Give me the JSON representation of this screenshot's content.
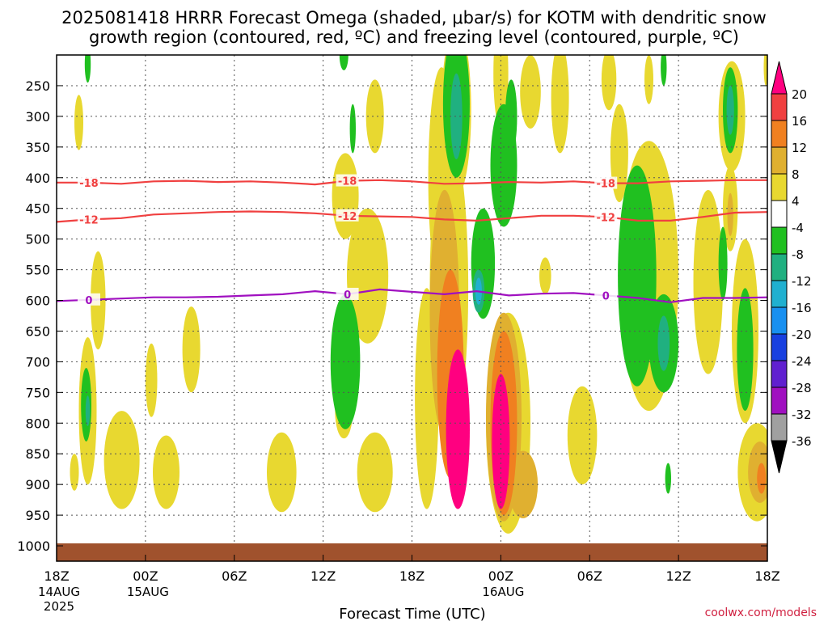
{
  "chart_data": {
    "type": "heatmap",
    "title_line1": "2025081418 HRRR Forecast Omega (shaded, μbar/s) for KOTM with dendritic snow",
    "title_line2": "growth region (contoured, red, ºC) and freezing level (contoured, purple, ºC)",
    "xlabel": "Forecast Time (UTC)",
    "credit": "coolwx.com/models",
    "x_ticks": [
      {
        "hour": 0,
        "label": "18Z",
        "date1": "14AUG",
        "date2": "2025"
      },
      {
        "hour": 6,
        "label": "00Z",
        "date1": "15AUG",
        "date2": ""
      },
      {
        "hour": 12,
        "label": "06Z",
        "date1": "",
        "date2": ""
      },
      {
        "hour": 18,
        "label": "12Z",
        "date1": "",
        "date2": ""
      },
      {
        "hour": 24,
        "label": "18Z",
        "date1": "",
        "date2": ""
      },
      {
        "hour": 30,
        "label": "00Z",
        "date1": "16AUG",
        "date2": ""
      },
      {
        "hour": 36,
        "label": "06Z",
        "date1": "",
        "date2": ""
      },
      {
        "hour": 42,
        "label": "12Z",
        "date1": "",
        "date2": ""
      },
      {
        "hour": 48,
        "label": "18Z",
        "date1": "",
        "date2": ""
      }
    ],
    "y_ticks": [
      "250",
      "300",
      "350",
      "400",
      "450",
      "500",
      "550",
      "600",
      "650",
      "700",
      "750",
      "800",
      "850",
      "900",
      "950",
      "1000"
    ],
    "y_range_hpa": [
      200,
      1025
    ],
    "x_range_hours": [
      0,
      48
    ],
    "colorbar": {
      "labels": [
        "20",
        "16",
        "12",
        "8",
        "4",
        "-4",
        "-8",
        "-12",
        "-16",
        "-20",
        "-24",
        "-28",
        "-32",
        "-36"
      ],
      "colors": [
        "#ff0080",
        "#f04040",
        "#f08020",
        "#e0b030",
        "#e8d830",
        "#ffffff",
        "#20c020",
        "#20b080",
        "#20b0d0",
        "#1890f0",
        "#1840e0",
        "#6020d0",
        "#a010c0",
        "#a0a0a0",
        "#000000"
      ]
    },
    "contours": {
      "dgz_red": [
        {
          "label": "-18",
          "color": "#f04040",
          "pressure": [
            408,
            408,
            410,
            406,
            405,
            407,
            406,
            408,
            411,
            405,
            404,
            406,
            410,
            409,
            407,
            408,
            406,
            409,
            409,
            406,
            405,
            404,
            404
          ]
        },
        {
          "label": "-12",
          "color": "#f04040",
          "pressure": [
            472,
            468,
            466,
            460,
            458,
            456,
            455,
            456,
            458,
            462,
            463,
            464,
            468,
            470,
            466,
            462,
            462,
            464,
            470,
            470,
            464,
            457,
            456
          ]
        }
      ],
      "freezing_purple": [
        {
          "label": "0",
          "color": "#a010c0",
          "pressure": [
            601,
            599,
            597,
            595,
            595,
            594,
            592,
            590,
            585,
            590,
            582,
            586,
            590,
            585,
            592,
            589,
            588,
            592,
            596,
            603,
            596,
            596,
            595
          ]
        }
      ]
    },
    "omega_regions": [
      {
        "x": 1.5,
        "p": 310,
        "rx": 0.3,
        "rp": 45,
        "v": 5
      },
      {
        "x": 2.1,
        "p": 780,
        "rx": 0.6,
        "rp": 120,
        "v": 5
      },
      {
        "x": 2.0,
        "p": 770,
        "rx": 0.35,
        "rp": 60,
        "v": -8
      },
      {
        "x": 2.1,
        "p": 780,
        "rx": 0.15,
        "rp": 25,
        "v": -13
      },
      {
        "x": 2.1,
        "p": 215,
        "rx": 0.2,
        "rp": 30,
        "v": -8
      },
      {
        "x": 1.2,
        "p": 880,
        "rx": 0.3,
        "rp": 30,
        "v": 5
      },
      {
        "x": 2.8,
        "p": 600,
        "rx": 0.5,
        "rp": 80,
        "v": 5
      },
      {
        "x": 4.4,
        "p": 860,
        "rx": 1.2,
        "rp": 80,
        "v": 5
      },
      {
        "x": 6.4,
        "p": 730,
        "rx": 0.4,
        "rp": 60,
        "v": 5
      },
      {
        "x": 7.4,
        "p": 880,
        "rx": 0.9,
        "rp": 60,
        "v": 5
      },
      {
        "x": 9.1,
        "p": 680,
        "rx": 0.6,
        "rp": 70,
        "v": 5
      },
      {
        "x": 15.2,
        "p": 880,
        "rx": 1.0,
        "rp": 65,
        "v": 5
      },
      {
        "x": 19.4,
        "p": 200,
        "rx": 0.3,
        "rp": 25,
        "v": -8
      },
      {
        "x": 19.5,
        "p": 700,
        "rx": 1.0,
        "rp": 110,
        "v": -8
      },
      {
        "x": 19.4,
        "p": 780,
        "rx": 0.6,
        "rp": 45,
        "v": 5
      },
      {
        "x": 19.5,
        "p": 430,
        "rx": 0.9,
        "rp": 70,
        "v": 5
      },
      {
        "x": 21.0,
        "p": 560,
        "rx": 1.4,
        "rp": 110,
        "v": 5
      },
      {
        "x": 21.5,
        "p": 880,
        "rx": 1.2,
        "rp": 65,
        "v": 5
      },
      {
        "x": 20.0,
        "p": 320,
        "rx": 0.2,
        "rp": 40,
        "v": -8
      },
      {
        "x": 21.5,
        "p": 300,
        "rx": 0.6,
        "rp": 60,
        "v": 5
      },
      {
        "x": 25.0,
        "p": 760,
        "rx": 0.8,
        "rp": 180,
        "v": 5
      },
      {
        "x": 26.0,
        "p": 400,
        "rx": 0.9,
        "rp": 180,
        "v": 5
      },
      {
        "x": 27.0,
        "p": 290,
        "rx": 1.0,
        "rp": 140,
        "v": 5
      },
      {
        "x": 27.0,
        "p": 280,
        "rx": 0.9,
        "rp": 120,
        "v": -8
      },
      {
        "x": 27.0,
        "p": 300,
        "rx": 0.4,
        "rp": 70,
        "v": -13
      },
      {
        "x": 26.5,
        "p": 580,
        "rx": 1.3,
        "rp": 250,
        "v": 5
      },
      {
        "x": 26.2,
        "p": 620,
        "rx": 1.0,
        "rp": 200,
        "v": 10
      },
      {
        "x": 26.6,
        "p": 720,
        "rx": 0.9,
        "rp": 170,
        "v": 14
      },
      {
        "x": 27.1,
        "p": 810,
        "rx": 0.8,
        "rp": 130,
        "v": 20
      },
      {
        "x": 28.8,
        "p": 540,
        "rx": 0.8,
        "rp": 90,
        "v": -8
      },
      {
        "x": 28.5,
        "p": 585,
        "rx": 0.4,
        "rp": 35,
        "v": -13
      },
      {
        "x": 28.5,
        "p": 585,
        "rx": 0.22,
        "rp": 22,
        "v": -17
      },
      {
        "x": 30.5,
        "p": 800,
        "rx": 1.5,
        "rp": 180,
        "v": 5
      },
      {
        "x": 30.2,
        "p": 790,
        "rx": 1.2,
        "rp": 170,
        "v": 10
      },
      {
        "x": 30.2,
        "p": 800,
        "rx": 0.9,
        "rp": 150,
        "v": 14
      },
      {
        "x": 30.0,
        "p": 830,
        "rx": 0.6,
        "rp": 110,
        "v": 20
      },
      {
        "x": 31.5,
        "p": 900,
        "rx": 1.0,
        "rp": 55,
        "v": 10
      },
      {
        "x": 30.2,
        "p": 380,
        "rx": 0.9,
        "rp": 100,
        "v": -8
      },
      {
        "x": 30.0,
        "p": 230,
        "rx": 0.5,
        "rp": 90,
        "v": 5
      },
      {
        "x": 30.7,
        "p": 300,
        "rx": 0.4,
        "rp": 60,
        "v": -8
      },
      {
        "x": 32.0,
        "p": 260,
        "rx": 0.7,
        "rp": 60,
        "v": 5
      },
      {
        "x": 34.0,
        "p": 270,
        "rx": 0.6,
        "rp": 90,
        "v": 5
      },
      {
        "x": 33.0,
        "p": 560,
        "rx": 0.4,
        "rp": 30,
        "v": 5
      },
      {
        "x": 35.5,
        "p": 820,
        "rx": 1.0,
        "rp": 80,
        "v": 5
      },
      {
        "x": 37.3,
        "p": 240,
        "rx": 0.5,
        "rp": 50,
        "v": 5
      },
      {
        "x": 38.0,
        "p": 360,
        "rx": 0.6,
        "rp": 80,
        "v": 5
      },
      {
        "x": 40.0,
        "p": 560,
        "rx": 2.0,
        "rp": 220,
        "v": 5
      },
      {
        "x": 39.2,
        "p": 560,
        "rx": 1.3,
        "rp": 180,
        "v": -8
      },
      {
        "x": 41.0,
        "p": 670,
        "rx": 1.0,
        "rp": 80,
        "v": -8
      },
      {
        "x": 41.0,
        "p": 670,
        "rx": 0.4,
        "rp": 45,
        "v": -13
      },
      {
        "x": 40.0,
        "p": 240,
        "rx": 0.3,
        "rp": 40,
        "v": 5
      },
      {
        "x": 41.0,
        "p": 220,
        "rx": 0.2,
        "rp": 30,
        "v": -8
      },
      {
        "x": 41.3,
        "p": 890,
        "rx": 0.2,
        "rp": 25,
        "v": -8
      },
      {
        "x": 44.0,
        "p": 570,
        "rx": 1.0,
        "rp": 150,
        "v": 5
      },
      {
        "x": 45.6,
        "p": 300,
        "rx": 0.9,
        "rp": 90,
        "v": 5
      },
      {
        "x": 45.5,
        "p": 290,
        "rx": 0.5,
        "rp": 70,
        "v": -8
      },
      {
        "x": 45.5,
        "p": 290,
        "rx": 0.25,
        "rp": 40,
        "v": -13
      },
      {
        "x": 45.5,
        "p": 450,
        "rx": 0.5,
        "rp": 70,
        "v": 5
      },
      {
        "x": 45.5,
        "p": 460,
        "rx": 0.2,
        "rp": 35,
        "v": 10
      },
      {
        "x": 46.5,
        "p": 650,
        "rx": 0.9,
        "rp": 150,
        "v": 5
      },
      {
        "x": 46.5,
        "p": 680,
        "rx": 0.55,
        "rp": 100,
        "v": -8
      },
      {
        "x": 45.0,
        "p": 540,
        "rx": 0.3,
        "rp": 60,
        "v": -8
      },
      {
        "x": 47.3,
        "p": 880,
        "rx": 1.3,
        "rp": 80,
        "v": 5
      },
      {
        "x": 47.5,
        "p": 880,
        "rx": 0.8,
        "rp": 50,
        "v": 10
      },
      {
        "x": 47.6,
        "p": 890,
        "rx": 0.3,
        "rp": 25,
        "v": 14
      },
      {
        "x": 47.9,
        "p": 220,
        "rx": 0.15,
        "rp": 30,
        "v": 5
      }
    ]
  }
}
